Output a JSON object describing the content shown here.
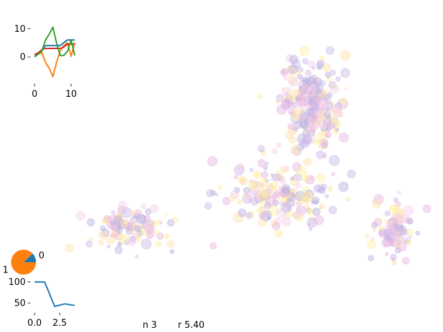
{
  "chart_data": [
    {
      "type": "scatter",
      "title": "",
      "xlabel": "",
      "ylabel": "",
      "axes_visible": false,
      "grid": false,
      "marker_alpha": 0.3,
      "palette": [
        "#e8b4e0",
        "#c9b8e8",
        "#fff0a6",
        "#b8b0e0",
        "#f5d0e8",
        "#ffe3b0"
      ],
      "note": "bubble cloud of ~600 translucent markers; points generated procedurally"
    },
    {
      "type": "line",
      "title": "",
      "x": [
        0,
        1,
        2,
        3,
        4,
        5,
        6,
        7,
        8,
        9,
        10,
        11
      ],
      "xticks": [
        "0",
        "10"
      ],
      "yticks": [
        "10",
        "0"
      ],
      "ylim": [
        -8,
        13
      ],
      "series": [
        {
          "color": "#1f77b4",
          "values": [
            0.3,
            1.0,
            2.5,
            4.0,
            4.0,
            4.0,
            4.0,
            4.0,
            5.0,
            6.0,
            6.0,
            6.0
          ]
        },
        {
          "color": "#ff7f0e",
          "values": [
            0.5,
            1.0,
            1.5,
            -2.0,
            -4.0,
            -7.0,
            -2.0,
            2.0,
            4.0,
            5.0,
            0.2,
            5.0
          ]
        },
        {
          "color": "#d62728",
          "values": [
            0.8,
            1.5,
            2.5,
            3.0,
            3.0,
            3.0,
            3.0,
            3.0,
            3.5,
            4.5,
            4.5,
            4.5
          ]
        },
        {
          "color": "#2ca02c",
          "values": [
            0.0,
            1.0,
            2.0,
            6.0,
            8.0,
            10.5,
            5.0,
            0.5,
            0.5,
            2.0,
            6.0,
            0.5
          ]
        }
      ]
    },
    {
      "type": "pie",
      "title": "",
      "labels": [
        "0",
        "1"
      ],
      "values": [
        12,
        88
      ],
      "colors": [
        "#1f77b4",
        "#ff7f0e"
      ]
    },
    {
      "type": "line",
      "title": "",
      "x": [
        0,
        1,
        2,
        3,
        4
      ],
      "xticks": [
        "0.0",
        "2.5"
      ],
      "yticks": [
        "100",
        "50"
      ],
      "ylim": [
        37,
        106
      ],
      "series": [
        {
          "color": "#1f77b4",
          "values": [
            100,
            100,
            42,
            48,
            44
          ]
        }
      ]
    }
  ],
  "annotations": {
    "n_label": "n 3",
    "r_label": "r 5.40"
  }
}
